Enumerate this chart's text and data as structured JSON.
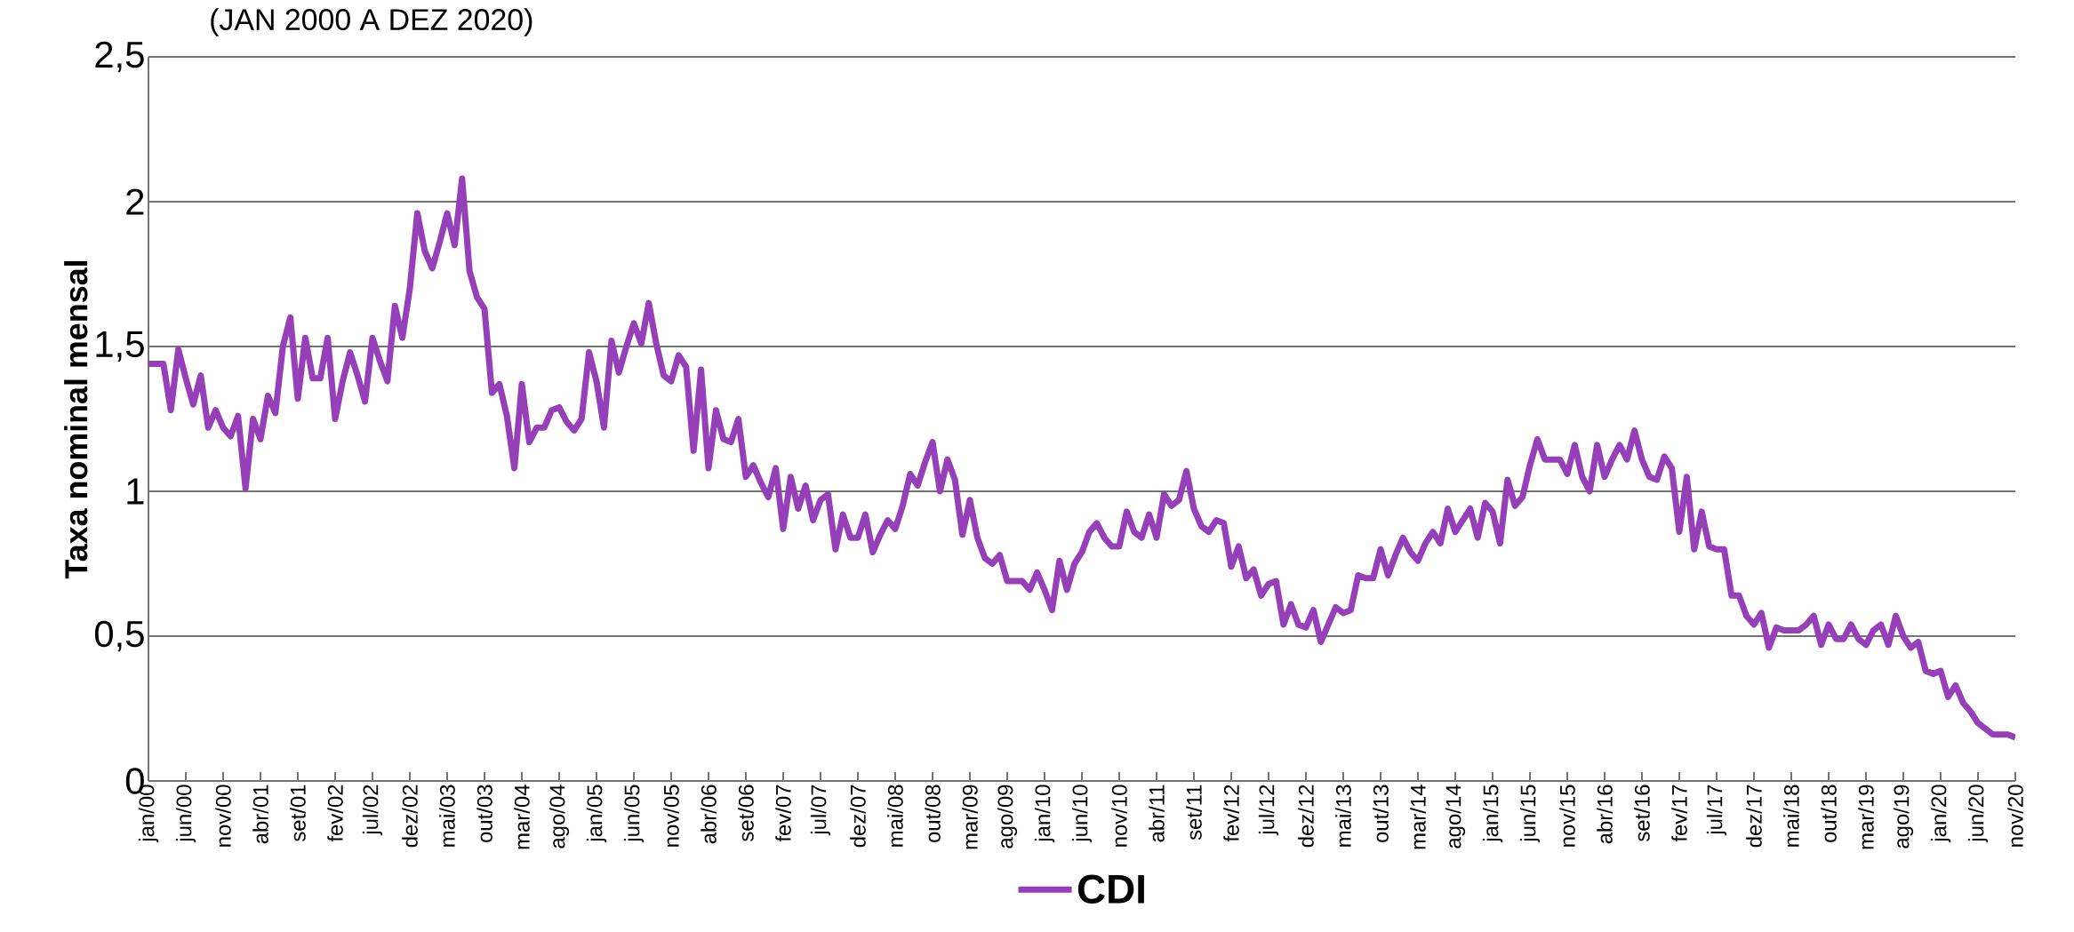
{
  "chart_data": {
    "type": "line",
    "subtitle": "(JAN 2000 A DEZ 2020)",
    "ylabel": "Taxa nominal mensal",
    "categories": [
      "jan/00",
      null,
      null,
      null,
      null,
      "jun/00",
      null,
      null,
      null,
      null,
      "nov/00",
      null,
      null,
      null,
      null,
      "abr/01",
      null,
      null,
      null,
      null,
      "set/01",
      null,
      null,
      null,
      null,
      "fev/02",
      null,
      null,
      null,
      null,
      "jul/02",
      null,
      null,
      null,
      null,
      "dez/02",
      null,
      null,
      null,
      null,
      "mai/03",
      null,
      null,
      null,
      null,
      "out/03",
      null,
      null,
      null,
      null,
      "mar/04",
      null,
      null,
      null,
      null,
      "ago/04",
      null,
      null,
      null,
      null,
      "jan/05",
      null,
      null,
      null,
      null,
      "jun/05",
      null,
      null,
      null,
      null,
      "nov/05",
      null,
      null,
      null,
      null,
      "abr/06",
      null,
      null,
      null,
      null,
      "set/06",
      null,
      null,
      null,
      null,
      "fev/07",
      null,
      null,
      null,
      null,
      "jul/07",
      null,
      null,
      null,
      null,
      "dez/07",
      null,
      null,
      null,
      null,
      "mai/08",
      null,
      null,
      null,
      null,
      "out/08",
      null,
      null,
      null,
      null,
      "mar/09",
      null,
      null,
      null,
      null,
      "ago/09",
      null,
      null,
      null,
      null,
      "jan/10",
      null,
      null,
      null,
      null,
      "jun/10",
      null,
      null,
      null,
      null,
      "nov/10",
      null,
      null,
      null,
      null,
      "abr/11",
      null,
      null,
      null,
      null,
      "set/11",
      null,
      null,
      null,
      null,
      "fev/12",
      null,
      null,
      null,
      null,
      "jul/12",
      null,
      null,
      null,
      null,
      "dez/12",
      null,
      null,
      null,
      null,
      "mai/13",
      null,
      null,
      null,
      null,
      "out/13",
      null,
      null,
      null,
      null,
      "mar/14",
      null,
      null,
      null,
      null,
      "ago/14",
      null,
      null,
      null,
      null,
      "jan/15",
      null,
      null,
      null,
      null,
      "jun/15",
      null,
      null,
      null,
      null,
      "nov/15",
      null,
      null,
      null,
      null,
      "abr/16",
      null,
      null,
      null,
      null,
      "set/16",
      null,
      null,
      null,
      null,
      "fev/17",
      null,
      null,
      null,
      null,
      "jul/17",
      null,
      null,
      null,
      null,
      "dez/17",
      null,
      null,
      null,
      null,
      "mai/18",
      null,
      null,
      null,
      null,
      "out/18",
      null,
      null,
      null,
      null,
      "mar/19",
      null,
      null,
      null,
      null,
      "ago/19",
      null,
      null,
      null,
      null,
      "jan/20",
      null,
      null,
      null,
      null,
      "jun/20",
      null,
      null,
      null,
      null,
      "nov/20"
    ],
    "series": [
      {
        "name": "CDI",
        "color": "#9540b8",
        "values": [
          1.44,
          1.44,
          1.44,
          1.28,
          1.49,
          1.39,
          1.3,
          1.4,
          1.22,
          1.28,
          1.22,
          1.19,
          1.26,
          1.01,
          1.25,
          1.18,
          1.33,
          1.27,
          1.5,
          1.6,
          1.32,
          1.53,
          1.39,
          1.39,
          1.53,
          1.25,
          1.38,
          1.48,
          1.4,
          1.31,
          1.53,
          1.45,
          1.38,
          1.64,
          1.53,
          1.7,
          1.96,
          1.83,
          1.77,
          1.86,
          1.96,
          1.85,
          2.08,
          1.76,
          1.67,
          1.63,
          1.34,
          1.37,
          1.26,
          1.08,
          1.37,
          1.17,
          1.22,
          1.22,
          1.28,
          1.29,
          1.24,
          1.21,
          1.25,
          1.48,
          1.38,
          1.22,
          1.52,
          1.41,
          1.5,
          1.58,
          1.51,
          1.65,
          1.51,
          1.4,
          1.38,
          1.47,
          1.43,
          1.14,
          1.42,
          1.08,
          1.28,
          1.18,
          1.17,
          1.25,
          1.05,
          1.09,
          1.03,
          0.98,
          1.08,
          0.87,
          1.05,
          0.94,
          1.02,
          0.9,
          0.97,
          0.99,
          0.8,
          0.92,
          0.84,
          0.84,
          0.92,
          0.79,
          0.85,
          0.9,
          0.87,
          0.95,
          1.06,
          1.02,
          1.1,
          1.17,
          1.0,
          1.11,
          1.04,
          0.85,
          0.97,
          0.84,
          0.77,
          0.75,
          0.78,
          0.69,
          0.69,
          0.69,
          0.66,
          0.72,
          0.66,
          0.59,
          0.76,
          0.66,
          0.75,
          0.79,
          0.86,
          0.89,
          0.84,
          0.81,
          0.81,
          0.93,
          0.86,
          0.84,
          0.92,
          0.84,
          0.99,
          0.95,
          0.97,
          1.07,
          0.94,
          0.88,
          0.86,
          0.9,
          0.89,
          0.74,
          0.81,
          0.7,
          0.73,
          0.64,
          0.68,
          0.69,
          0.54,
          0.61,
          0.54,
          0.53,
          0.59,
          0.48,
          0.54,
          0.6,
          0.58,
          0.59,
          0.71,
          0.7,
          0.7,
          0.8,
          0.71,
          0.78,
          0.84,
          0.79,
          0.76,
          0.82,
          0.86,
          0.82,
          0.94,
          0.86,
          0.9,
          0.94,
          0.84,
          0.96,
          0.93,
          0.82,
          1.04,
          0.95,
          0.98,
          1.09,
          1.18,
          1.11,
          1.11,
          1.11,
          1.06,
          1.16,
          1.05,
          1.0,
          1.16,
          1.05,
          1.11,
          1.16,
          1.11,
          1.21,
          1.11,
          1.05,
          1.04,
          1.12,
          1.08,
          0.86,
          1.05,
          0.8,
          0.93,
          0.81,
          0.8,
          0.8,
          0.64,
          0.64,
          0.57,
          0.54,
          0.58,
          0.46,
          0.53,
          0.52,
          0.52,
          0.52,
          0.54,
          0.57,
          0.47,
          0.54,
          0.49,
          0.49,
          0.54,
          0.49,
          0.47,
          0.52,
          0.54,
          0.47,
          0.57,
          0.5,
          0.46,
          0.48,
          0.38,
          0.37,
          0.38,
          0.29,
          0.33,
          0.27,
          0.24,
          0.2,
          0.18,
          0.16,
          0.16,
          0.16,
          0.15
        ]
      }
    ],
    "ylim": [
      0,
      2.5
    ],
    "yticks": [
      0,
      {
        "value": 0.5,
        "label": "0,5"
      },
      1,
      {
        "value": 1.5,
        "label": "1,5"
      },
      2,
      {
        "value": 2.5,
        "label": "2,5"
      }
    ],
    "grid": "y",
    "legend": "bottom",
    "marker": "none",
    "line_style": "solid"
  }
}
